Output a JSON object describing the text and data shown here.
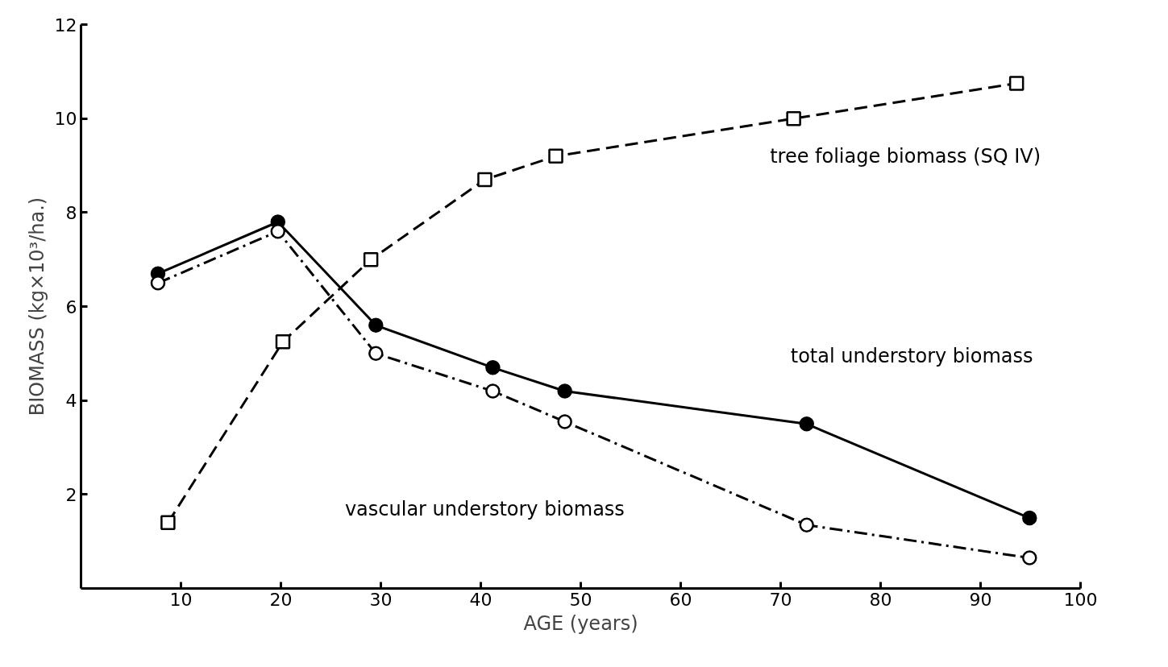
{
  "chart_data": {
    "type": "line",
    "xlabel": "AGE (years)",
    "ylabel": "BIOMASS (kg×10³/ha.)",
    "xlim": [
      0,
      100
    ],
    "xticks": [
      10,
      20,
      30,
      40,
      50,
      60,
      70,
      80,
      90,
      100
    ],
    "ylim": [
      0,
      12
    ],
    "yticks": [
      2,
      4,
      6,
      8,
      10,
      12
    ],
    "grid": false,
    "series": [
      {
        "name": "total understory biomass",
        "color": "#000000",
        "marker": "circle",
        "line_style": "solid",
        "x": [
          7.7,
          19.7,
          29.5,
          41.2,
          48.4,
          72.6,
          94.9
        ],
        "values": [
          6.7,
          7.8,
          5.6,
          4.7,
          4.2,
          3.5,
          1.5
        ]
      },
      {
        "name": "vascular understory biomass",
        "color": "#000000",
        "marker": "circle",
        "line_style": "dashdot",
        "x": [
          7.7,
          19.7,
          29.5,
          41.2,
          48.4,
          72.6,
          94.9
        ],
        "values": [
          6.5,
          7.6,
          5.0,
          4.2,
          3.55,
          1.35,
          0.65
        ]
      },
      {
        "name": "tree foliage biomass (SQ IV)",
        "color": "#000000",
        "marker": "square",
        "line_style": "dashed",
        "x": [
          8.7,
          20.2,
          29.0,
          40.4,
          47.5,
          71.3,
          93.6
        ],
        "values": [
          1.4,
          5.25,
          7.0,
          8.7,
          9.2,
          10.0,
          10.75
        ]
      }
    ]
  }
}
